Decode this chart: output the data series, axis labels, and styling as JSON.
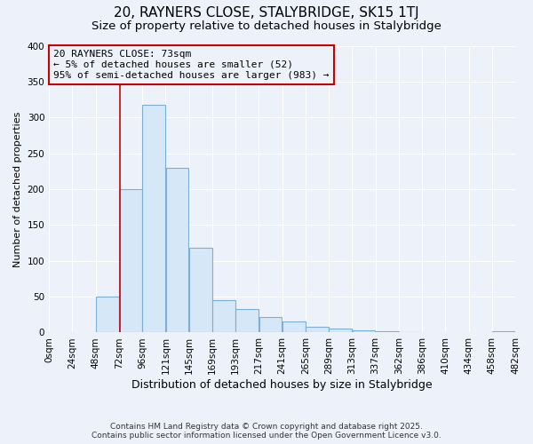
{
  "title": "20, RAYNERS CLOSE, STALYBRIDGE, SK15 1TJ",
  "subtitle": "Size of property relative to detached houses in Stalybridge",
  "xlabel": "Distribution of detached houses by size in Stalybridge",
  "ylabel": "Number of detached properties",
  "bin_edges": [
    0,
    24,
    48,
    72,
    96,
    120,
    144,
    168,
    192,
    216,
    240,
    264,
    288,
    312,
    336,
    360,
    384,
    408,
    432,
    456,
    480
  ],
  "bin_labels": [
    "0sqm",
    "24sqm",
    "48sqm",
    "72sqm",
    "96sqm",
    "121sqm",
    "145sqm",
    "169sqm",
    "193sqm",
    "217sqm",
    "241sqm",
    "265sqm",
    "289sqm",
    "313sqm",
    "337sqm",
    "362sqm",
    "386sqm",
    "410sqm",
    "434sqm",
    "458sqm",
    "482sqm"
  ],
  "counts": [
    0,
    0,
    50,
    200,
    318,
    230,
    118,
    45,
    33,
    22,
    15,
    8,
    5,
    3,
    2,
    1,
    0,
    0,
    0,
    2
  ],
  "bar_color": "#d6e8f7",
  "bar_edge_color": "#7ab0d8",
  "property_line_x": 73,
  "property_line_color": "#cc0000",
  "annotation_line1": "20 RAYNERS CLOSE: 73sqm",
  "annotation_line2": "← 5% of detached houses are smaller (52)",
  "annotation_line3": "95% of semi-detached houses are larger (983) →",
  "annotation_box_color": "#cc0000",
  "ylim": [
    0,
    400
  ],
  "yticks": [
    0,
    50,
    100,
    150,
    200,
    250,
    300,
    350,
    400
  ],
  "background_color": "#edf2fa",
  "grid_color": "#ffffff",
  "footer_line1": "Contains HM Land Registry data © Crown copyright and database right 2025.",
  "footer_line2": "Contains public sector information licensed under the Open Government Licence v3.0.",
  "title_fontsize": 11,
  "subtitle_fontsize": 9.5,
  "xlabel_fontsize": 9,
  "ylabel_fontsize": 8,
  "tick_fontsize": 7.5,
  "annotation_fontsize": 8,
  "footer_fontsize": 6.5
}
